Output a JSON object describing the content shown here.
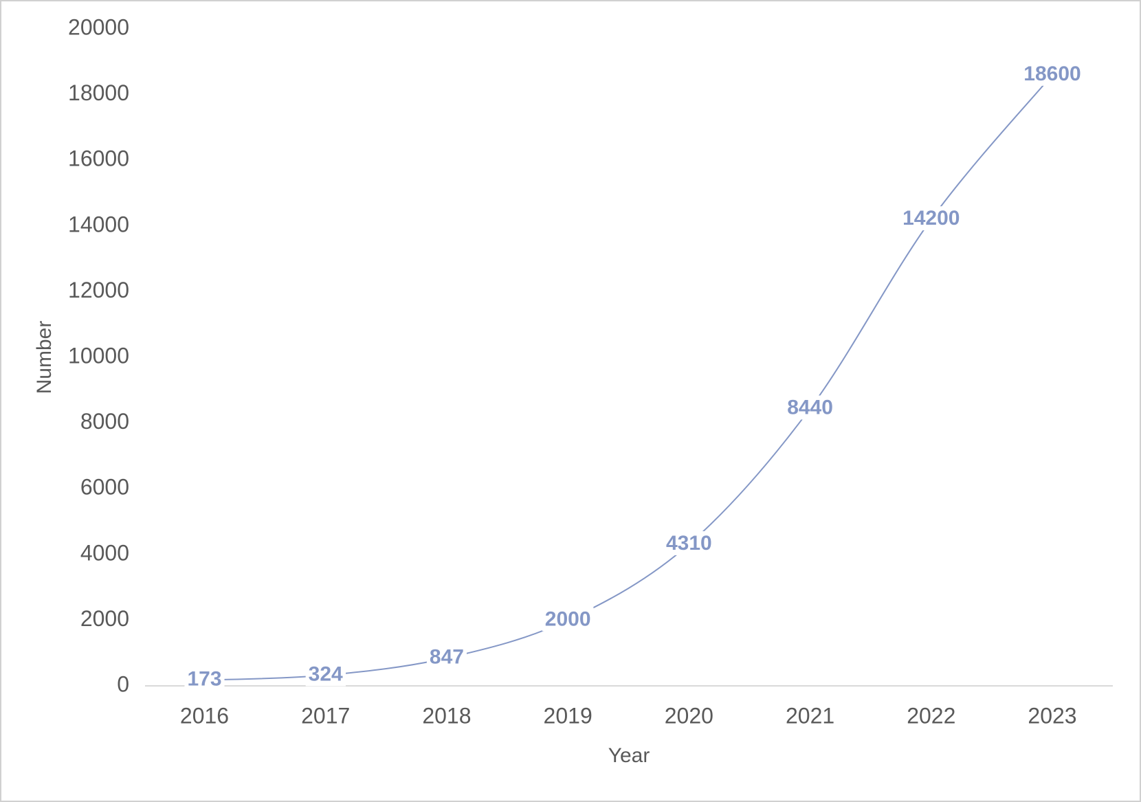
{
  "chart_data": {
    "type": "line",
    "x_label": "Year",
    "y_label": "Number",
    "categories": [
      "2016",
      "2017",
      "2018",
      "2019",
      "2020",
      "2021",
      "2022",
      "2023"
    ],
    "series": [
      {
        "name": "Number",
        "color": "#8497c6",
        "values": [
          173,
          324,
          847,
          2000,
          4310,
          8440,
          14200,
          18600
        ]
      }
    ],
    "ylim": [
      0,
      20000
    ],
    "yticks": [
      0,
      2000,
      4000,
      6000,
      8000,
      10000,
      12000,
      14000,
      16000,
      18000,
      20000
    ],
    "data_labels": true,
    "smooth": true
  }
}
